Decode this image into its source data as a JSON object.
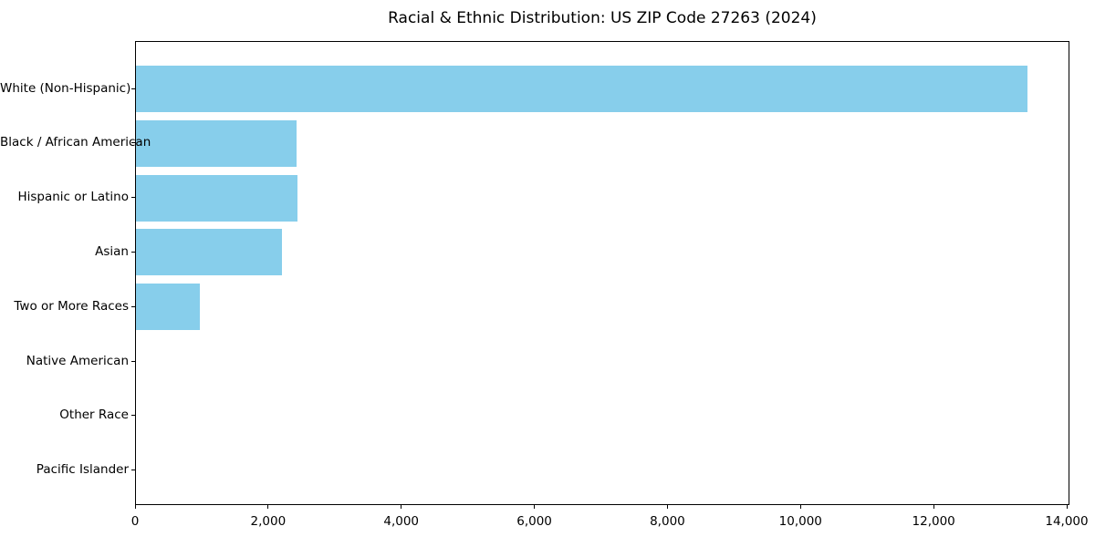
{
  "title": "Racial & Ethnic Distribution: US ZIP Code 27263 (2024)",
  "chart_data": {
    "type": "bar",
    "orientation": "horizontal",
    "title": "Racial & Ethnic Distribution: US ZIP Code 27263 (2024)",
    "categories": [
      "White (Non-Hispanic)",
      "Black / African American",
      "Hispanic or Latino",
      "Asian",
      "Two or More Races",
      "Native American",
      "Other Race",
      "Pacific Islander"
    ],
    "values": [
      13400,
      2410,
      2430,
      2200,
      960,
      0,
      0,
      0
    ],
    "xlabel": "",
    "ylabel": "",
    "xlim": [
      0,
      14000
    ],
    "x_ticks": [
      0,
      2000,
      4000,
      6000,
      8000,
      10000,
      12000,
      14000
    ],
    "x_tick_labels": [
      "0",
      "2,000",
      "4,000",
      "6,000",
      "8,000",
      "10,000",
      "12,000",
      "14,000"
    ],
    "bar_color": "#87CEEB",
    "text_color": "#000000",
    "grid": false,
    "legend": null
  }
}
